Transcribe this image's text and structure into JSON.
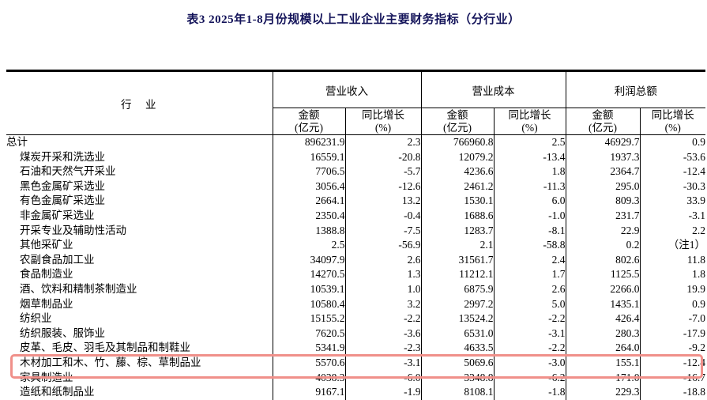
{
  "title": "表3  2025年1-8月份规模以上工业企业主要财务指标（分行业）",
  "table": {
    "industry_header": "行　业",
    "groups": [
      {
        "label": "营业收入"
      },
      {
        "label": "营业成本"
      },
      {
        "label": "利润总额"
      }
    ],
    "sub_headers": {
      "amount_line1": "金额",
      "amount_line2": "(亿元)",
      "growth_line1": "同比增长",
      "growth_line2": "(%)"
    },
    "rows": [
      {
        "name": "总计",
        "indent": false,
        "values": [
          "896231.9",
          "2.3",
          "766960.8",
          "2.5",
          "46929.7",
          "0.9"
        ]
      },
      {
        "name": "煤炭开采和洗选业",
        "indent": true,
        "values": [
          "16559.1",
          "-20.8",
          "12079.2",
          "-13.4",
          "1937.3",
          "-53.6"
        ]
      },
      {
        "name": "石油和天然气开采业",
        "indent": true,
        "values": [
          "7706.5",
          "-5.7",
          "4236.6",
          "1.8",
          "2364.7",
          "-12.4"
        ]
      },
      {
        "name": "黑色金属矿采选业",
        "indent": true,
        "values": [
          "3056.4",
          "-12.6",
          "2461.2",
          "-11.3",
          "295.0",
          "-30.3"
        ]
      },
      {
        "name": "有色金属矿采选业",
        "indent": true,
        "values": [
          "2664.1",
          "13.2",
          "1530.1",
          "6.0",
          "809.3",
          "33.9"
        ]
      },
      {
        "name": "非金属矿采选业",
        "indent": true,
        "values": [
          "2350.4",
          "-0.4",
          "1688.6",
          "-1.0",
          "231.7",
          "-3.1"
        ]
      },
      {
        "name": "开采专业及辅助性活动",
        "indent": true,
        "values": [
          "1388.8",
          "-7.5",
          "1283.7",
          "-8.1",
          "22.9",
          "2.2"
        ]
      },
      {
        "name": "其他采矿业",
        "indent": true,
        "values": [
          "2.5",
          "-56.9",
          "2.1",
          "-58.8",
          "0.2",
          "（注1）"
        ]
      },
      {
        "name": "农副食品加工业",
        "indent": true,
        "values": [
          "34097.9",
          "2.6",
          "31561.7",
          "2.4",
          "802.6",
          "11.8"
        ]
      },
      {
        "name": "食品制造业",
        "indent": true,
        "values": [
          "14270.5",
          "1.3",
          "11212.1",
          "1.7",
          "1125.5",
          "1.8"
        ]
      },
      {
        "name": "酒、饮料和精制茶制造业",
        "indent": true,
        "values": [
          "10539.1",
          "1.0",
          "6875.9",
          "2.6",
          "2266.0",
          "19.9"
        ]
      },
      {
        "name": "烟草制品业",
        "indent": true,
        "values": [
          "10580.4",
          "3.2",
          "2997.2",
          "5.0",
          "1435.1",
          "0.9"
        ]
      },
      {
        "name": "纺织业",
        "indent": true,
        "values": [
          "15155.2",
          "-2.2",
          "13524.2",
          "-2.2",
          "426.4",
          "-7.0"
        ]
      },
      {
        "name": "纺织服装、服饰业",
        "indent": true,
        "values": [
          "7620.5",
          "-3.6",
          "6531.0",
          "-3.1",
          "280.3",
          "-17.9"
        ]
      },
      {
        "name": "皮革、毛皮、羽毛及其制品和制鞋业",
        "indent": true,
        "values": [
          "5341.9",
          "-2.3",
          "4633.5",
          "-2.2",
          "264.0",
          "-9.2"
        ]
      },
      {
        "name": "木材加工和木、竹、藤、棕、草制品业",
        "indent": true,
        "values": [
          "5570.6",
          "-3.1",
          "5069.6",
          "-3.0",
          "155.1",
          "-12.4"
        ]
      },
      {
        "name": "家具制造业",
        "indent": true,
        "values": [
          "4038.3",
          "-6.0",
          "3348.8",
          "-6.2",
          "171.0",
          "-16.7"
        ]
      },
      {
        "name": "造纸和纸制品业",
        "indent": true,
        "values": [
          "9167.1",
          "-1.9",
          "8108.1",
          "-1.8",
          "229.3",
          "-18.8"
        ]
      }
    ]
  },
  "highlight": {
    "row_names": [
      "木材加工和木、竹、藤、棕、草制品业",
      "家具制造业"
    ],
    "color": "#f0908a"
  },
  "colors": {
    "number_text": "#00007f",
    "border": "#000000",
    "highlight_border": "#f0908a"
  }
}
